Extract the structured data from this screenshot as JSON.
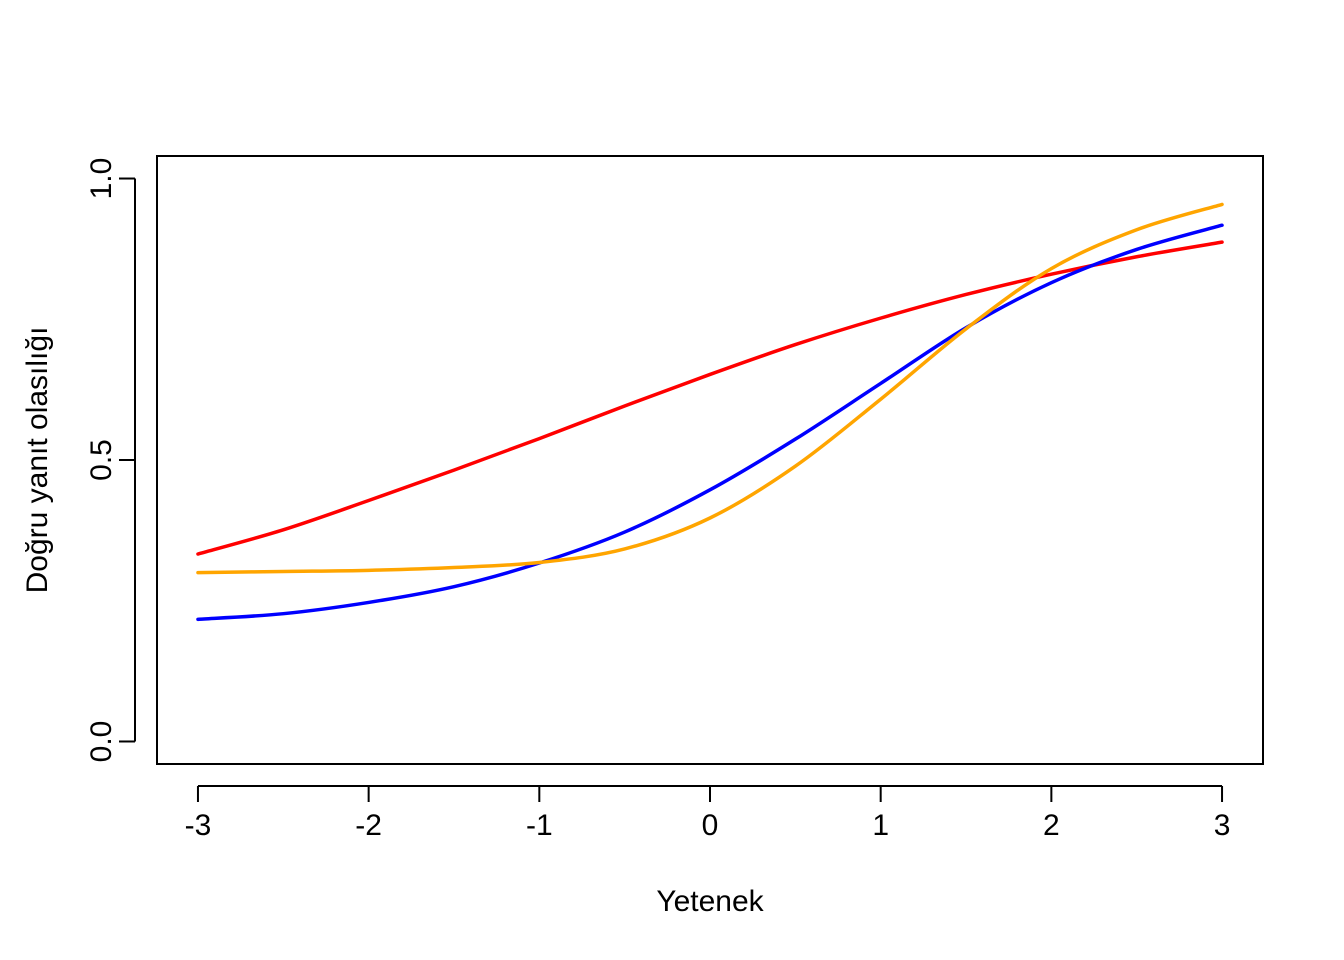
{
  "chart_data": {
    "type": "line",
    "title": "",
    "xlabel": "Yetenek",
    "ylabel": "Doğru yanıt olasılığı",
    "xlim": [
      -3.24,
      3.24
    ],
    "ylim": [
      -0.04,
      1.04
    ],
    "xticks": [
      -3,
      -2,
      -1,
      0,
      1,
      2,
      3
    ],
    "xtick_labels": [
      "-3",
      "-2",
      "-1",
      "0",
      "1",
      "2",
      "3"
    ],
    "yticks": [
      0,
      0.5,
      1
    ],
    "ytick_labels": [
      "0.0",
      "0.5",
      "1.0"
    ],
    "grid": false,
    "legend": "none",
    "series": [
      {
        "color": "#ff0000",
        "points": [
          [
            -3,
            0.333
          ],
          [
            -2.5,
            0.376
          ],
          [
            -2,
            0.428
          ],
          [
            -1.5,
            0.482
          ],
          [
            -1,
            0.538
          ],
          [
            -0.5,
            0.596
          ],
          [
            0,
            0.652
          ],
          [
            0.5,
            0.705
          ],
          [
            1,
            0.752
          ],
          [
            1.5,
            0.794
          ],
          [
            2,
            0.83
          ],
          [
            2.5,
            0.861
          ],
          [
            3,
            0.887
          ]
        ]
      },
      {
        "color": "#0000ff",
        "points": [
          [
            -3,
            0.217
          ],
          [
            -2.5,
            0.227
          ],
          [
            -2,
            0.247
          ],
          [
            -1.5,
            0.275
          ],
          [
            -1,
            0.317
          ],
          [
            -0.5,
            0.372
          ],
          [
            0,
            0.447
          ],
          [
            0.5,
            0.537
          ],
          [
            1,
            0.636
          ],
          [
            1.5,
            0.735
          ],
          [
            2,
            0.815
          ],
          [
            2.5,
            0.874
          ],
          [
            3,
            0.917
          ]
        ]
      },
      {
        "color": "#ffa500",
        "points": [
          [
            -3,
            0.3
          ],
          [
            -2.5,
            0.302
          ],
          [
            -2,
            0.304
          ],
          [
            -1.5,
            0.309
          ],
          [
            -1,
            0.318
          ],
          [
            -0.5,
            0.342
          ],
          [
            0,
            0.397
          ],
          [
            0.5,
            0.489
          ],
          [
            1,
            0.608
          ],
          [
            1.5,
            0.733
          ],
          [
            2,
            0.84
          ],
          [
            2.5,
            0.909
          ],
          [
            3,
            0.954
          ]
        ]
      }
    ]
  }
}
